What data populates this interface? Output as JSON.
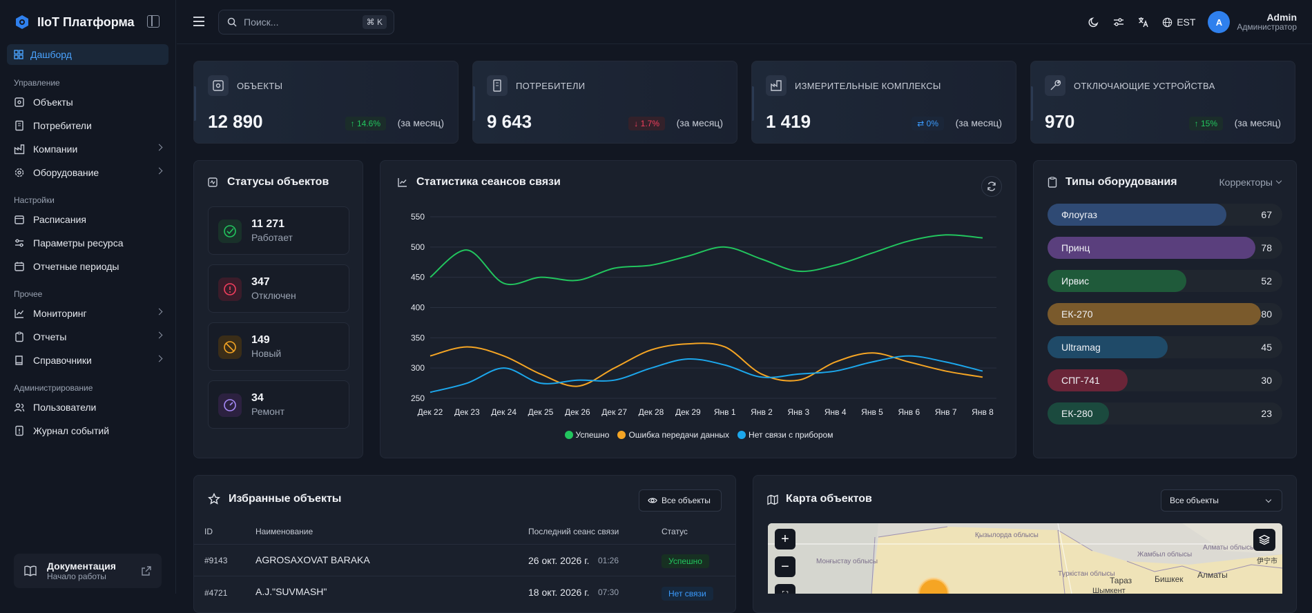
{
  "app": {
    "title": "IIoT Платформа"
  },
  "sidebar": {
    "active": "Дашборд",
    "sections": {
      "management": "Управление",
      "settings": "Настройки",
      "other": "Прочее",
      "admin": "Администрирование"
    },
    "items": {
      "objects": "Объекты",
      "consumers": "Потребители",
      "companies": "Компании",
      "equipment": "Оборудование",
      "schedules": "Расписания",
      "resource_params": "Параметры ресурса",
      "report_periods": "Отчетные периоды",
      "monitoring": "Мониторинг",
      "reports": "Отчеты",
      "references": "Справочники",
      "users": "Пользователи",
      "event_log": "Журнал событий"
    },
    "docs": {
      "title": "Документация",
      "subtitle": "Начало работы"
    }
  },
  "topbar": {
    "search_placeholder": "Поиск...",
    "shortcut": "⌘ K",
    "timezone": "EST",
    "user": {
      "initial": "A",
      "name": "Admin",
      "role": "Администратор"
    }
  },
  "stats": [
    {
      "label": "ОБЪЕКТЫ",
      "value": "12 890",
      "change": "14.6%",
      "trend": "up",
      "period": "(за месяц)"
    },
    {
      "label": "ПОТРЕБИТЕЛИ",
      "value": "9 643",
      "change": "1.7%",
      "trend": "down",
      "period": "(за месяц)"
    },
    {
      "label": "ИЗМЕРИТЕЛЬНЫЕ КОМПЛЕКСЫ",
      "value": "1 419",
      "change": "0%",
      "trend": "flat",
      "period": "(за месяц)"
    },
    {
      "label": "ОТКЛЮЧАЮЩИЕ УСТРОЙСТВА",
      "value": "970",
      "change": "15%",
      "trend": "up",
      "period": "(за месяц)"
    }
  ],
  "object_statuses": {
    "title": "Статусы объектов",
    "items": [
      {
        "count": "11 271",
        "label": "Работает"
      },
      {
        "count": "347",
        "label": "Отключен"
      },
      {
        "count": "149",
        "label": "Новый"
      },
      {
        "count": "34",
        "label": "Ремонт"
      }
    ]
  },
  "chart_data": {
    "type": "line",
    "title": "Статистика сеансов связи",
    "categories": [
      "Дек 22",
      "Дек 23",
      "Дек 24",
      "Дек 25",
      "Дек 26",
      "Дек 27",
      "Дек 28",
      "Дек 29",
      "Янв 1",
      "Янв 2",
      "Янв 3",
      "Янв 4",
      "Янв 5",
      "Янв 6",
      "Янв 7",
      "Янв 8"
    ],
    "ylim": [
      250,
      550
    ],
    "yticks": [
      550,
      500,
      450,
      400,
      350,
      300,
      250
    ],
    "grid": true,
    "legend": "bottom",
    "series": [
      {
        "name": "Успешно",
        "color": "#22c55e",
        "values": [
          450,
          495,
          440,
          450,
          445,
          465,
          470,
          485,
          500,
          480,
          460,
          470,
          490,
          510,
          520,
          515
        ]
      },
      {
        "name": "Ошибка передачи данных",
        "color": "#f5a524",
        "values": [
          320,
          335,
          320,
          290,
          270,
          300,
          330,
          340,
          335,
          290,
          280,
          310,
          325,
          310,
          295,
          285
        ]
      },
      {
        "name": "Нет связи с прибором",
        "color": "#1ca7ec",
        "values": [
          260,
          275,
          300,
          275,
          280,
          280,
          300,
          315,
          305,
          285,
          290,
          295,
          310,
          320,
          310,
          295
        ]
      }
    ]
  },
  "equipment_types": {
    "title": "Типы оборудования",
    "filter": "Корректоры",
    "items": [
      {
        "name": "Флоугаз",
        "value": 67,
        "color": "#2f4a74"
      },
      {
        "name": "Принц",
        "value": 78,
        "color": "#5a3f7d"
      },
      {
        "name": "Ирвис",
        "value": 52,
        "color": "#1f5a3a"
      },
      {
        "name": "ЕК-270",
        "value": 80,
        "color": "#7a5a2c"
      },
      {
        "name": "Ultramag",
        "value": 45,
        "color": "#1f4a68"
      },
      {
        "name": "СПГ-741",
        "value": 30,
        "color": "#6a2538"
      },
      {
        "name": "ЕК-280",
        "value": 23,
        "color": "#1b4a3e"
      }
    ]
  },
  "favorites": {
    "title": "Избранные объекты",
    "all_button": "Все объекты",
    "columns": [
      "ID",
      "Наименование",
      "Последний сеанс связи",
      "Статус"
    ],
    "rows": [
      {
        "id": "#9143",
        "name": "AGROSAXOVAT BARAKA",
        "date": "26 окт. 2026 г.",
        "time": "01:26",
        "status": "Успешно"
      },
      {
        "id": "#4721",
        "name": "A.J.\"SUVMASH\"",
        "date": "18 окт. 2026 г.",
        "time": "07:30",
        "status": "Нет связи"
      }
    ]
  },
  "map": {
    "title": "Карта объектов",
    "filter": "Все объекты",
    "labels": [
      "Қызылорда облысы",
      "Жамбыл облысы",
      "Алматы облысы",
      "Түркістан облысы",
      "Тараз",
      "Бишкек",
      "Алматы",
      "Шымкент",
      "伊宁市",
      "Монғыстау облысы"
    ]
  }
}
